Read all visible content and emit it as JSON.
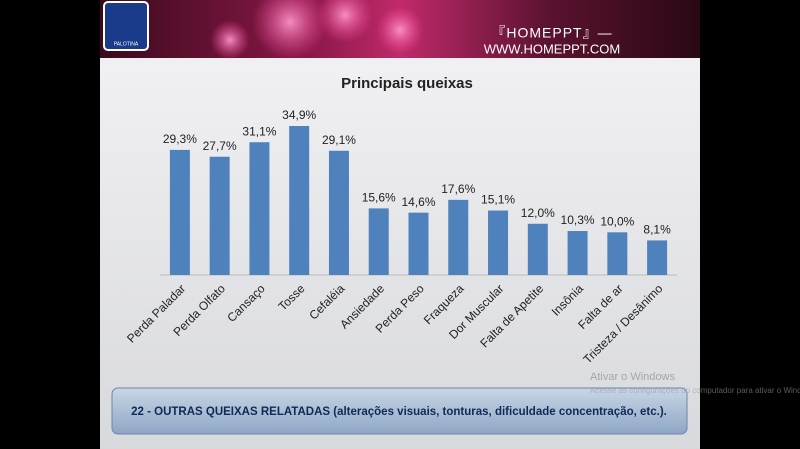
{
  "header": {
    "brand": "『HOMEPPT』—",
    "url": "WWW.HOMEPPT.COM",
    "logo_text": "PALOTINA"
  },
  "chart_data": {
    "type": "bar",
    "title": "Principais queixas",
    "categories": [
      "Perda Paladar",
      "Perda Olfato",
      "Cansaço",
      "Tosse",
      "Cefaléia",
      "Ansiedade",
      "Perda Peso",
      "Fraqueza",
      "Dor Muscular",
      "Falta de Apetite",
      "Insônia",
      "Falta de ar",
      "Tristeza / Desânimo"
    ],
    "values": [
      29.3,
      27.7,
      31.1,
      34.9,
      29.1,
      15.6,
      14.6,
      17.6,
      15.1,
      12.0,
      10.3,
      10.0,
      8.1
    ],
    "value_labels": [
      "29,3%",
      "27,7%",
      "31,1%",
      "34,9%",
      "29,1%",
      "15,6%",
      "14,6%",
      "17,6%",
      "15,1%",
      "12,0%",
      "10,3%",
      "10,0%",
      "8,1%"
    ],
    "color": "#4f81bd"
  },
  "footer_note": "22 - OUTRAS QUEIXAS RELATADAS (alterações visuais, tonturas, dificuldade concentração, etc.).",
  "watermark": {
    "title": "Ativar o Windows",
    "subtitle": "Acesse as configurações do computador para ativar o Windows."
  }
}
